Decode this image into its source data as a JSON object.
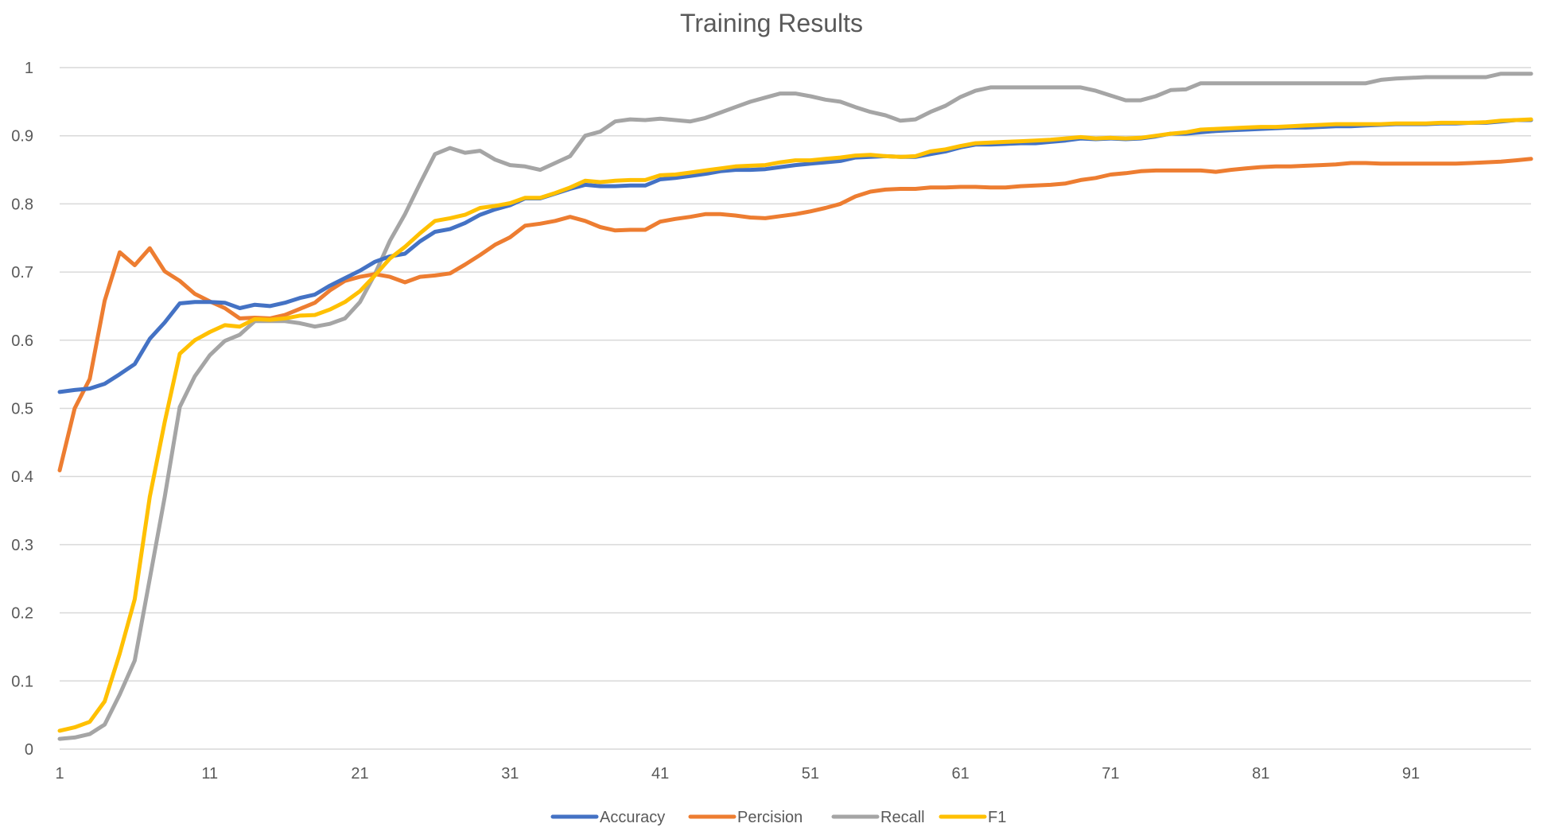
{
  "chart_data": {
    "type": "line",
    "title": "Training  Results",
    "xlabel": "",
    "ylabel": "",
    "xlim": [
      1,
      99
    ],
    "ylim": [
      0,
      1
    ],
    "grid": true,
    "legend_position": "bottom",
    "x_tick_labels": [
      "1",
      "11",
      "21",
      "31",
      "41",
      "51",
      "61",
      "71",
      "81",
      "91"
    ],
    "y_tick_labels": [
      "0",
      "0.1",
      "0.2",
      "0.3",
      "0.4",
      "0.5",
      "0.6",
      "0.7",
      "0.8",
      "0.9",
      "1"
    ],
    "x": [
      1,
      2,
      3,
      4,
      5,
      6,
      7,
      8,
      9,
      10,
      11,
      12,
      13,
      14,
      15,
      16,
      17,
      18,
      19,
      20,
      21,
      22,
      23,
      24,
      25,
      26,
      27,
      28,
      29,
      30,
      31,
      32,
      33,
      34,
      35,
      36,
      37,
      38,
      39,
      40,
      41,
      42,
      43,
      44,
      45,
      46,
      47,
      48,
      49,
      50,
      51,
      52,
      53,
      54,
      55,
      56,
      57,
      58,
      59,
      60,
      61,
      62,
      63,
      64,
      65,
      66,
      67,
      68,
      69,
      70,
      71,
      72,
      73,
      74,
      75,
      76,
      77,
      78,
      79,
      80,
      81,
      82,
      83,
      84,
      85,
      86,
      87,
      88,
      89,
      90,
      91,
      92,
      93,
      94,
      95,
      96,
      97,
      98,
      99
    ],
    "series": [
      {
        "name": "Accuracy",
        "color": "#4472C4",
        "values": [
          0.524,
          0.527,
          0.529,
          0.536,
          0.55,
          0.565,
          0.602,
          0.626,
          0.654,
          0.656,
          0.656,
          0.655,
          0.647,
          0.652,
          0.65,
          0.655,
          0.662,
          0.667,
          0.68,
          0.691,
          0.702,
          0.715,
          0.723,
          0.727,
          0.745,
          0.759,
          0.763,
          0.772,
          0.784,
          0.792,
          0.798,
          0.808,
          0.808,
          0.815,
          0.822,
          0.828,
          0.826,
          0.826,
          0.827,
          0.827,
          0.836,
          0.838,
          0.841,
          0.844,
          0.848,
          0.85,
          0.85,
          0.851,
          0.854,
          0.857,
          0.859,
          0.861,
          0.863,
          0.868,
          0.869,
          0.87,
          0.869,
          0.869,
          0.873,
          0.877,
          0.883,
          0.887,
          0.887,
          0.888,
          0.889,
          0.889,
          0.891,
          0.893,
          0.896,
          0.895,
          0.896,
          0.895,
          0.896,
          0.899,
          0.903,
          0.903,
          0.905,
          0.907,
          0.908,
          0.909,
          0.91,
          0.911,
          0.912,
          0.912,
          0.913,
          0.914,
          0.914,
          0.915,
          0.916,
          0.917,
          0.917,
          0.917,
          0.918,
          0.918,
          0.919,
          0.919,
          0.921,
          0.923,
          0.923
        ]
      },
      {
        "name": "Percision",
        "color": "#ED7D31",
        "values": [
          0.409,
          0.5,
          0.543,
          0.658,
          0.729,
          0.71,
          0.735,
          0.701,
          0.687,
          0.668,
          0.657,
          0.647,
          0.632,
          0.633,
          0.632,
          0.637,
          0.646,
          0.655,
          0.673,
          0.687,
          0.693,
          0.697,
          0.693,
          0.685,
          0.693,
          0.695,
          0.698,
          0.711,
          0.725,
          0.74,
          0.751,
          0.768,
          0.771,
          0.775,
          0.781,
          0.775,
          0.766,
          0.761,
          0.762,
          0.762,
          0.774,
          0.778,
          0.781,
          0.785,
          0.785,
          0.783,
          0.78,
          0.779,
          0.782,
          0.785,
          0.789,
          0.794,
          0.8,
          0.811,
          0.818,
          0.821,
          0.822,
          0.822,
          0.824,
          0.824,
          0.825,
          0.825,
          0.824,
          0.824,
          0.826,
          0.827,
          0.828,
          0.83,
          0.835,
          0.838,
          0.843,
          0.845,
          0.848,
          0.849,
          0.849,
          0.849,
          0.849,
          0.847,
          0.85,
          0.852,
          0.854,
          0.855,
          0.855,
          0.856,
          0.857,
          0.858,
          0.86,
          0.86,
          0.859,
          0.859,
          0.859,
          0.859,
          0.859,
          0.859,
          0.86,
          0.861,
          0.862,
          0.864,
          0.866
        ]
      },
      {
        "name": "Recall",
        "color": "#A5A5A5",
        "values": [
          0.015,
          0.017,
          0.022,
          0.036,
          0.08,
          0.13,
          0.25,
          0.37,
          0.502,
          0.547,
          0.578,
          0.599,
          0.608,
          0.628,
          0.628,
          0.628,
          0.625,
          0.62,
          0.624,
          0.632,
          0.656,
          0.697,
          0.746,
          0.785,
          0.83,
          0.873,
          0.882,
          0.875,
          0.878,
          0.865,
          0.857,
          0.855,
          0.85,
          0.86,
          0.87,
          0.9,
          0.906,
          0.921,
          0.924,
          0.923,
          0.925,
          0.923,
          0.921,
          0.926,
          0.934,
          0.942,
          0.95,
          0.956,
          0.962,
          0.962,
          0.958,
          0.953,
          0.95,
          0.942,
          0.935,
          0.93,
          0.922,
          0.924,
          0.935,
          0.944,
          0.957,
          0.966,
          0.971,
          0.971,
          0.971,
          0.971,
          0.971,
          0.971,
          0.971,
          0.966,
          0.959,
          0.952,
          0.952,
          0.958,
          0.967,
          0.968,
          0.977,
          0.977,
          0.977,
          0.977,
          0.977,
          0.977,
          0.977,
          0.977,
          0.977,
          0.977,
          0.977,
          0.977,
          0.982,
          0.984,
          0.985,
          0.986,
          0.986,
          0.986,
          0.986,
          0.986,
          0.991,
          0.991,
          0.991
        ]
      },
      {
        "name": "F1",
        "color": "#FFC000",
        "values": [
          0.027,
          0.032,
          0.04,
          0.07,
          0.14,
          0.22,
          0.37,
          0.48,
          0.58,
          0.6,
          0.612,
          0.622,
          0.62,
          0.631,
          0.63,
          0.632,
          0.636,
          0.637,
          0.645,
          0.656,
          0.672,
          0.695,
          0.72,
          0.737,
          0.757,
          0.775,
          0.779,
          0.784,
          0.794,
          0.797,
          0.801,
          0.809,
          0.809,
          0.816,
          0.824,
          0.834,
          0.832,
          0.834,
          0.835,
          0.835,
          0.842,
          0.843,
          0.846,
          0.849,
          0.852,
          0.855,
          0.856,
          0.857,
          0.861,
          0.864,
          0.864,
          0.866,
          0.868,
          0.871,
          0.872,
          0.87,
          0.869,
          0.87,
          0.877,
          0.88,
          0.885,
          0.889,
          0.89,
          0.891,
          0.892,
          0.893,
          0.894,
          0.896,
          0.898,
          0.896,
          0.897,
          0.896,
          0.897,
          0.9,
          0.903,
          0.905,
          0.909,
          0.91,
          0.911,
          0.912,
          0.913,
          0.913,
          0.914,
          0.915,
          0.916,
          0.917,
          0.917,
          0.917,
          0.917,
          0.918,
          0.918,
          0.918,
          0.919,
          0.919,
          0.919,
          0.92,
          0.922,
          0.923,
          0.924
        ]
      }
    ]
  }
}
